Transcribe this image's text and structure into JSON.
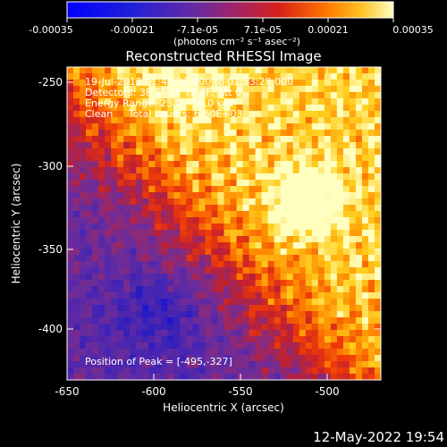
{
  "colorbar": {
    "tick_labels": [
      "-0.00035",
      "-0.00021",
      "-7.1e-05",
      "7.1e-05",
      "0.00021",
      "0.00035"
    ],
    "unit_label": "(photons cm⁻² s⁻¹ asec⁻²)"
  },
  "plot": {
    "title": "Reconstructed RHESSI Image",
    "xlabel": "Heliocentric X (arcsec)",
    "ylabel": "Heliocentric Y (arcsec)",
    "x_ticks": [
      "-650",
      "-600",
      "-550",
      "-500"
    ],
    "y_ticks": [
      "-250",
      "-300",
      "-350",
      "-400"
    ]
  },
  "info": {
    "line1": "19-Jul-2012 01:47:32.000 to 01:53:28.000",
    "line2": "Detectors: 3F 5F 6F 7F 8F, Att 0",
    "line3": "Energy Range: 25.0 - 50.0 keV",
    "line4": "Clean     Total counts: 6.60E+03",
    "peak": "Position of Peak = [-495,-327]"
  },
  "footer": {
    "timestamp": "12-May-2022 19:54"
  },
  "colors": {
    "background": "#000000",
    "text": "#ffffff",
    "colormap": [
      "#0000ff",
      "#3a1aa8",
      "#5a2aa0",
      "#7a2c96",
      "#a8205a",
      "#d0201e",
      "#ff5a00",
      "#ffb000",
      "#ffffb0"
    ]
  }
}
